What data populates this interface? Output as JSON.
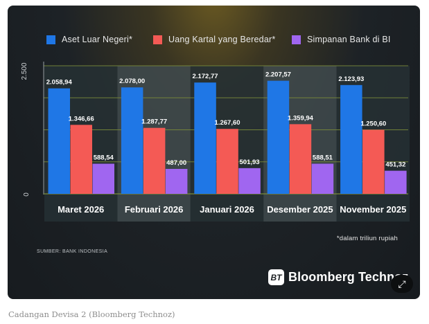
{
  "caption": "Cadangan Devisa 2 (Bloomberg Technoz)",
  "source": "SUMBER: BANK INDONESIA",
  "note": "*dalam triliun rupiah",
  "brand": {
    "logo_text": "BT",
    "name": "Bloomberg Technoz"
  },
  "expand_icon": "expand-icon",
  "colors": {
    "aset": "#1f77e6",
    "uang": "#f45a55",
    "simpanan": "#a066f0",
    "grid": "#7a8a3a",
    "panel_light": "#3f4a4e",
    "panel_dark": "#263034"
  },
  "chart_data": {
    "type": "bar",
    "categories": [
      "Maret 2026",
      "Februari 2026",
      "Januari 2026",
      "Desember 2025",
      "November 2025"
    ],
    "series": [
      {
        "name": "Aset Luar Negeri*",
        "values": [
          2058.94,
          2078.0,
          2172.77,
          2207.57,
          2123.93
        ],
        "labels": [
          "2.058,94",
          "2.078,00",
          "2.172,77",
          "2.207,57",
          "2.123,93"
        ]
      },
      {
        "name": "Uang Kartal yang Beredar*",
        "values": [
          1346.66,
          1287.77,
          1267.6,
          1359.94,
          1250.6
        ],
        "labels": [
          "1.346,66",
          "1.287,77",
          "1.267,60",
          "1.359,94",
          "1.250,60"
        ]
      },
      {
        "name": "Simpanan Bank di BI",
        "values": [
          588.54,
          487.0,
          501.93,
          588.51,
          451.32
        ],
        "labels": [
          "588,54",
          "487,00",
          "501,93",
          "588,51",
          "451,32"
        ]
      }
    ],
    "ylim": [
      0,
      2500
    ],
    "yticks": [
      0,
      2500
    ],
    "ytick_labels": [
      "0",
      "2.500"
    ],
    "grid": true,
    "legend": "top"
  }
}
